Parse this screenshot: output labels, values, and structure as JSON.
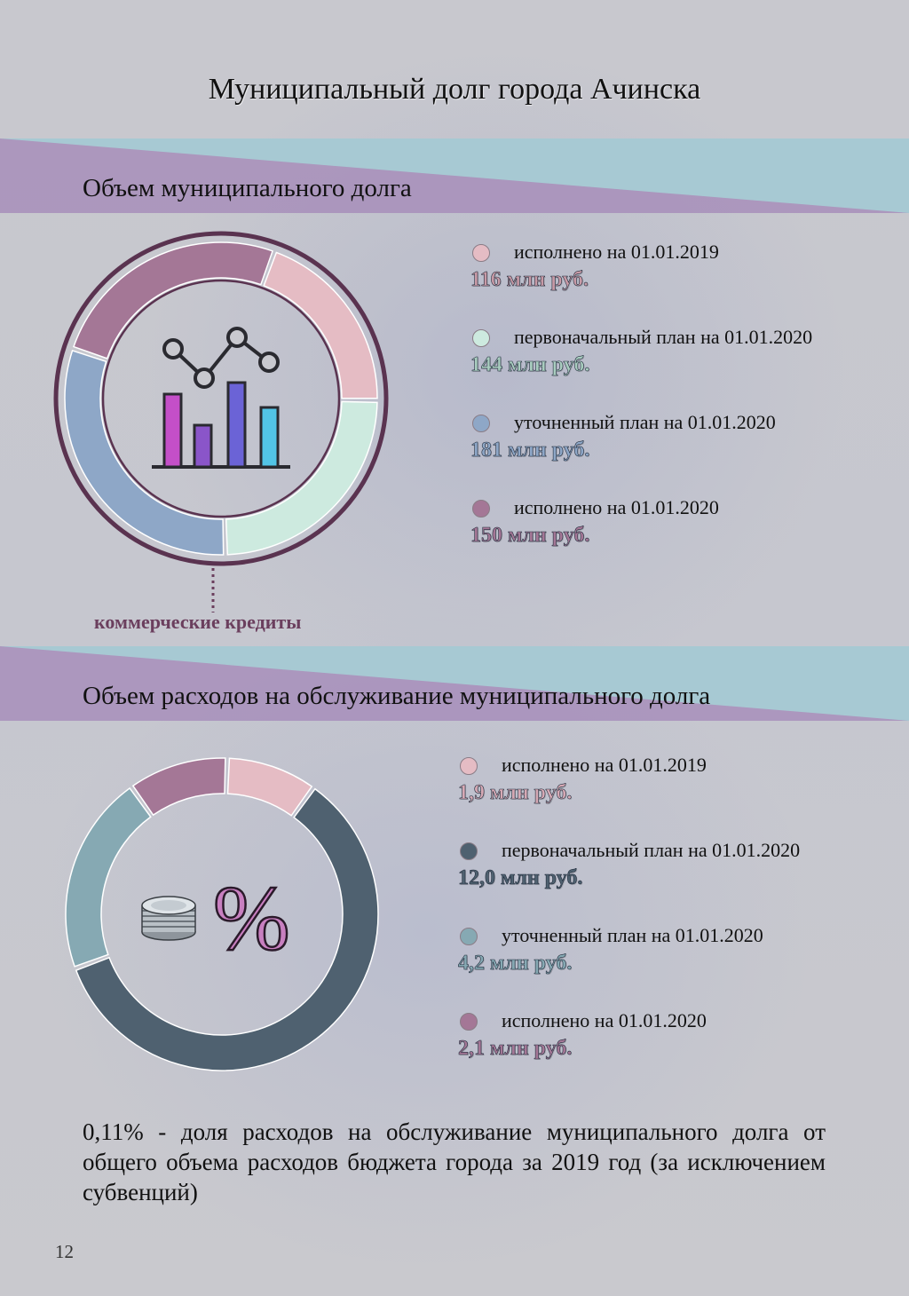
{
  "page_title": "Муниципальный долг города Ачинска",
  "page_number": "12",
  "colors": {
    "pink": "#e5bcc4",
    "mint": "#cdeadf",
    "blue": "#8ea7c7",
    "purple": "#a47796",
    "slate": "#4f6170",
    "teal": "#86a9b3",
    "ring_border": "#5a3350",
    "callout": "#6b3f5e"
  },
  "section1": {
    "title": "Объем муниципального долга",
    "callout": "коммерческие кредиты",
    "icon": "bar-line-chart-icon",
    "legend": [
      {
        "label": "исполнено на 01.01.2019",
        "value": "116 млн руб.",
        "color": "#e5bcc4",
        "text_color": "#c89aa6"
      },
      {
        "label": "первоначальный план на 01.01.2020",
        "value": "144 млн руб.",
        "color": "#cdeadf",
        "text_color": "#a9cdbf"
      },
      {
        "label": "уточненный план на 01.01.2020",
        "value": "181 млн руб.",
        "color": "#8ea7c7",
        "text_color": "#8ea7c7"
      },
      {
        "label": "исполнено на 01.01.2020",
        "value": "150 млн руб.",
        "color": "#a47796",
        "text_color": "#a47796"
      }
    ]
  },
  "section2": {
    "title": "Объем расходов на обслуживание муниципального долга",
    "icon": "coins-percent-icon",
    "percent_sign": "%",
    "legend": [
      {
        "label": "исполнено на 01.01.2019",
        "value": "1,9 млн руб.",
        "color": "#e5bcc4",
        "text_color": "#d6a9b4"
      },
      {
        "label": "первоначальный план на 01.01.2020",
        "value": "12,0 млн руб.",
        "color": "#4f6170",
        "text_color": "#4f6170"
      },
      {
        "label": "уточненный план на 01.01.2020",
        "value": "4,2 млн руб.",
        "color": "#86a9b3",
        "text_color": "#86a9b3"
      },
      {
        "label": "исполнено на 01.01.2020",
        "value": "2,1 млн руб.",
        "color": "#a47796",
        "text_color": "#a47796"
      }
    ]
  },
  "summary": "0,11% - доля расходов на обслуживание муниципального долга от общего объема расходов бюджета города за 2019 год (за исключением субвенций)",
  "chart_data": [
    {
      "type": "pie",
      "title": "Объем муниципального долга",
      "unit": "млн руб.",
      "categories": [
        "исполнено на 01.01.2019",
        "первоначальный план на 01.01.2020",
        "уточненный план на 01.01.2020",
        "исполнено на 01.01.2020"
      ],
      "values": [
        116,
        144,
        181,
        150
      ],
      "colors": [
        "#e5bcc4",
        "#cdeadf",
        "#8ea7c7",
        "#a47796"
      ]
    },
    {
      "type": "pie",
      "title": "Объем расходов на обслуживание муниципального долга",
      "unit": "млн руб.",
      "categories": [
        "исполнено на 01.01.2019",
        "первоначальный план на 01.01.2020",
        "уточненный план на 01.01.2020",
        "исполнено на 01.01.2020"
      ],
      "values": [
        1.9,
        12.0,
        4.2,
        2.1
      ],
      "colors": [
        "#e5bcc4",
        "#4f6170",
        "#86a9b3",
        "#a47796"
      ]
    }
  ]
}
